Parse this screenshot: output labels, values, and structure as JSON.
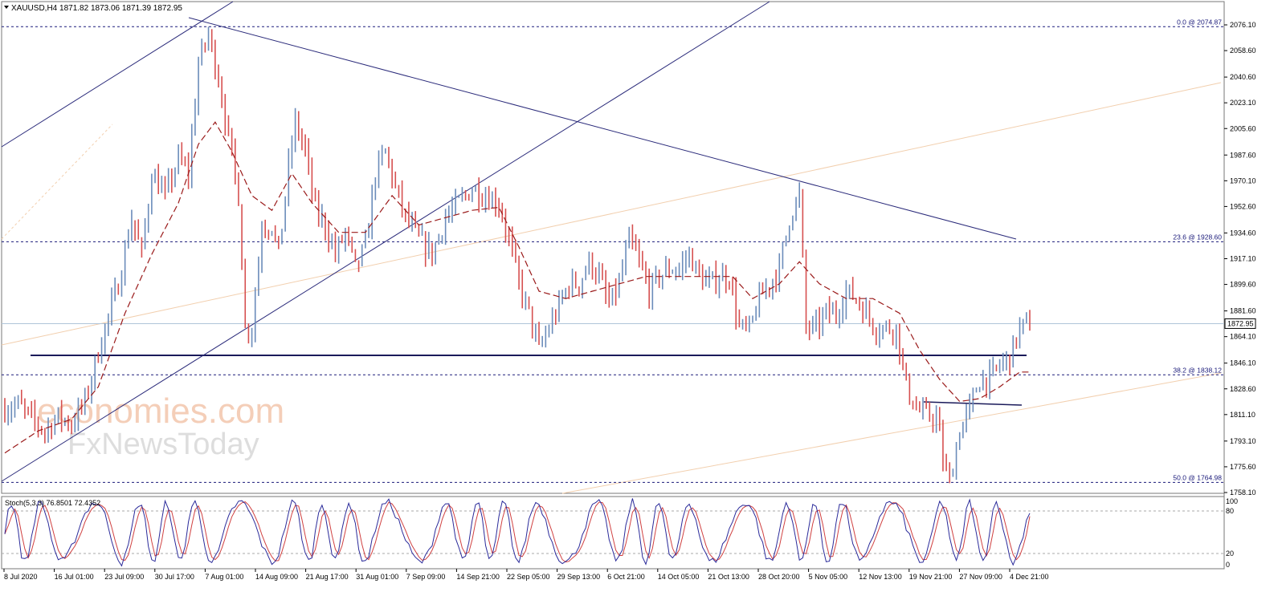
{
  "header": {
    "symbol_line": "XAUUSD,H4  1871.82 1873.06 1871.39 1872.95"
  },
  "price_axis": {
    "ticks": [
      "2076.10",
      "2058.60",
      "2040.60",
      "2023.10",
      "2005.60",
      "1987.60",
      "1970.10",
      "1952.60",
      "1934.60",
      "1917.10",
      "1899.60",
      "1881.60",
      "1864.10",
      "1846.10",
      "1828.60",
      "1811.10",
      "1793.10",
      "1775.60",
      "1758.10"
    ],
    "current_price": "1872.95"
  },
  "fib_levels": [
    {
      "label": "0.0 @ 2074.87",
      "price": 2074.87
    },
    {
      "label": "23.6 @ 1928.60",
      "price": 1928.6
    },
    {
      "label": "38.2 @ 1838.12",
      "price": 1838.12
    },
    {
      "label": "50.0 @ 1764.98",
      "price": 1764.98
    }
  ],
  "stochastic": {
    "label": "Stoch(5,3,3) 76.8501 72.4352",
    "ticks": [
      "100",
      "80",
      "20",
      "0"
    ]
  },
  "time_axis": {
    "labels": [
      "8 Jul 2020",
      "16 Jul 01:00",
      "23 Jul 09:00",
      "30 Jul 17:00",
      "7 Aug 01:00",
      "14 Aug 09:00",
      "21 Aug 17:00",
      "31 Aug 01:00",
      "7 Sep 09:00",
      "14 Sep 21:00",
      "22 Sep 05:00",
      "29 Sep 13:00",
      "6 Oct 21:00",
      "14 Oct 05:00",
      "21 Oct 13:00",
      "28 Oct 20:00",
      "5 Nov 05:00",
      "12 Nov 13:00",
      "19 Nov 21:00",
      "27 Nov 09:00",
      "4 Dec 21:00"
    ]
  },
  "watermark": {
    "line1": "economies.com",
    "line2": "FxNewsToday"
  },
  "colors": {
    "bull": "#6b8cba",
    "bear": "#d65050",
    "trendline": "#1a1a7a",
    "ma": "#9a1a1a",
    "channel": "#f0c8a0",
    "stoch_main": "#2a2a9a",
    "stoch_signal": "#d04040"
  },
  "chart_data": {
    "type": "candlestick",
    "symbol": "XAUUSD",
    "timeframe": "H4",
    "ylim": [
      1758.1,
      2085.0
    ],
    "price_path": [
      [
        0,
        1815
      ],
      [
        4,
        1818
      ],
      [
        8,
        1808
      ],
      [
        12,
        1800
      ],
      [
        16,
        1810
      ],
      [
        20,
        1805
      ],
      [
        24,
        1820
      ],
      [
        27,
        1845
      ],
      [
        30,
        1870
      ],
      [
        34,
        1900
      ],
      [
        38,
        1945
      ],
      [
        41,
        1920
      ],
      [
        44,
        1975
      ],
      [
        48,
        1960
      ],
      [
        52,
        1985
      ],
      [
        55,
        1975
      ],
      [
        58,
        2050
      ],
      [
        61,
        2070
      ],
      [
        64,
        2040
      ],
      [
        67,
        2000
      ],
      [
        70,
        1960
      ],
      [
        72,
        1870
      ],
      [
        74,
        1870
      ],
      [
        77,
        1940
      ],
      [
        80,
        1940
      ],
      [
        82,
        1920
      ],
      [
        85,
        1980
      ],
      [
        87,
        2010
      ],
      [
        90,
        1990
      ],
      [
        93,
        1950
      ],
      [
        96,
        1940
      ],
      [
        99,
        1920
      ],
      [
        102,
        1935
      ],
      [
        105,
        1910
      ],
      [
        108,
        1925
      ],
      [
        111,
        1975
      ],
      [
        114,
        1990
      ],
      [
        117,
        1965
      ],
      [
        120,
        1945
      ],
      [
        124,
        1930
      ],
      [
        128,
        1920
      ],
      [
        132,
        1945
      ],
      [
        136,
        1955
      ],
      [
        140,
        1965
      ],
      [
        144,
        1960
      ],
      [
        148,
        1955
      ],
      [
        151,
        1930
      ],
      [
        154,
        1900
      ],
      [
        157,
        1880
      ],
      [
        160,
        1855
      ],
      [
        163,
        1870
      ],
      [
        166,
        1885
      ],
      [
        169,
        1900
      ],
      [
        172,
        1900
      ],
      [
        175,
        1915
      ],
      [
        178,
        1905
      ],
      [
        181,
        1885
      ],
      [
        184,
        1900
      ],
      [
        187,
        1930
      ],
      [
        190,
        1915
      ],
      [
        193,
        1895
      ],
      [
        196,
        1905
      ],
      [
        199,
        1910
      ],
      [
        202,
        1910
      ],
      [
        205,
        1920
      ],
      [
        208,
        1905
      ],
      [
        211,
        1900
      ],
      [
        214,
        1905
      ],
      [
        217,
        1905
      ],
      [
        220,
        1870
      ],
      [
        223,
        1868
      ],
      [
        226,
        1890
      ],
      [
        229,
        1900
      ],
      [
        232,
        1910
      ],
      [
        235,
        1945
      ],
      [
        238,
        1960
      ],
      [
        240,
        1870
      ],
      [
        243,
        1870
      ],
      [
        246,
        1880
      ],
      [
        249,
        1880
      ],
      [
        252,
        1895
      ],
      [
        255,
        1890
      ],
      [
        258,
        1880
      ],
      [
        261,
        1870
      ],
      [
        264,
        1870
      ],
      [
        267,
        1870
      ],
      [
        270,
        1830
      ],
      [
        273,
        1815
      ],
      [
        276,
        1810
      ],
      [
        279,
        1810
      ],
      [
        281,
        1780
      ],
      [
        283,
        1765
      ],
      [
        286,
        1800
      ],
      [
        289,
        1815
      ],
      [
        292,
        1835
      ],
      [
        295,
        1835
      ],
      [
        298,
        1845
      ],
      [
        301,
        1850
      ],
      [
        304,
        1870
      ],
      [
        307,
        1873
      ]
    ],
    "ma_path": [
      [
        0,
        1785
      ],
      [
        10,
        1800
      ],
      [
        20,
        1808
      ],
      [
        28,
        1830
      ],
      [
        36,
        1880
      ],
      [
        44,
        1920
      ],
      [
        52,
        1955
      ],
      [
        58,
        1995
      ],
      [
        63,
        2010
      ],
      [
        68,
        1990
      ],
      [
        74,
        1960
      ],
      [
        80,
        1950
      ],
      [
        86,
        1975
      ],
      [
        92,
        1955
      ],
      [
        100,
        1935
      ],
      [
        108,
        1935
      ],
      [
        116,
        1960
      ],
      [
        124,
        1940
      ],
      [
        132,
        1945
      ],
      [
        140,
        1950
      ],
      [
        148,
        1952
      ],
      [
        154,
        1925
      ],
      [
        160,
        1895
      ],
      [
        168,
        1890
      ],
      [
        176,
        1895
      ],
      [
        184,
        1900
      ],
      [
        192,
        1905
      ],
      [
        200,
        1905
      ],
      [
        210,
        1905
      ],
      [
        218,
        1905
      ],
      [
        224,
        1890
      ],
      [
        232,
        1900
      ],
      [
        238,
        1915
      ],
      [
        244,
        1900
      ],
      [
        252,
        1890
      ],
      [
        260,
        1890
      ],
      [
        268,
        1880
      ],
      [
        274,
        1855
      ],
      [
        280,
        1835
      ],
      [
        286,
        1820
      ],
      [
        292,
        1822
      ],
      [
        298,
        1830
      ],
      [
        304,
        1840
      ]
    ],
    "stochastic": {
      "k_last": 76.8501,
      "d_last": 72.4352,
      "ylim": [
        0,
        100
      ],
      "levels": [
        80,
        20
      ]
    }
  }
}
